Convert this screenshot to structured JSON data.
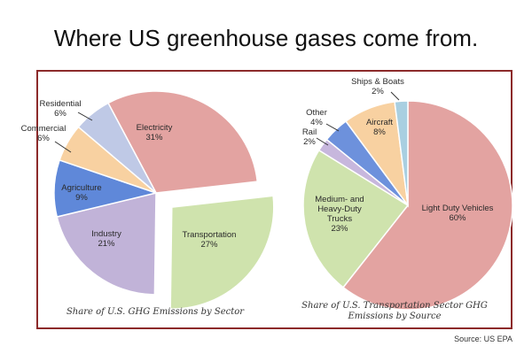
{
  "title": "Where US greenhouse gases come from.",
  "source": "Source: US EPA",
  "colors": {
    "frame": "#8c2a2a",
    "electricity": "#e3a3a1",
    "transportation": "#cfe3ad",
    "industry": "#c1b3d8",
    "agriculture": "#5f88d9",
    "commercial": "#f8d1a1",
    "residential": "#bfc9e6",
    "light_duty": "#e3a3a1",
    "medium_heavy": "#cfe3ad",
    "rail": "#c7b7dd",
    "other": "#6d91dc",
    "aircraft": "#f8d1a1",
    "ships": "#a9cfe1"
  },
  "chart_data": [
    {
      "type": "pie",
      "caption": "Share of U.S. GHG Emissions by Sector",
      "slices": [
        {
          "key": "electricity",
          "name": "Electricity",
          "value": 31,
          "label": "31%",
          "color": "#e3a3a1"
        },
        {
          "key": "transportation",
          "name": "Transportation",
          "value": 27,
          "label": "27%",
          "color": "#cfe3ad",
          "exploded": true
        },
        {
          "key": "industry",
          "name": "Industry",
          "value": 21,
          "label": "21%",
          "color": "#c1b3d8"
        },
        {
          "key": "agriculture",
          "name": "Agriculture",
          "value": 9,
          "label": "9%",
          "color": "#5f88d9"
        },
        {
          "key": "commercial",
          "name": "Commercial",
          "value": 6,
          "label": "6%",
          "color": "#f8d1a1"
        },
        {
          "key": "residential",
          "name": "Residential",
          "value": 6,
          "label": "6%",
          "color": "#bfc9e6"
        }
      ]
    },
    {
      "type": "pie",
      "caption": "Share of U.S. Transportation Sector GHG Emissions by Source",
      "slices": [
        {
          "key": "light_duty",
          "name": "Light Duty Vehicles",
          "value": 60,
          "label": "60%",
          "color": "#e3a3a1"
        },
        {
          "key": "medium_heavy",
          "name": "Medium- and Heavy-Duty Trucks",
          "value": 23,
          "label": "23%",
          "color": "#cfe3ad"
        },
        {
          "key": "rail",
          "name": "Rail",
          "value": 2,
          "label": "2%",
          "color": "#c7b7dd"
        },
        {
          "key": "other",
          "name": "Other",
          "value": 4,
          "label": "4%",
          "color": "#6d91dc"
        },
        {
          "key": "aircraft",
          "name": "Aircraft",
          "value": 8,
          "label": "8%",
          "color": "#f8d1a1"
        },
        {
          "key": "ships",
          "name": "Ships & Boats",
          "value": 2,
          "label": "2%",
          "color": "#a9cfe1"
        }
      ]
    }
  ]
}
